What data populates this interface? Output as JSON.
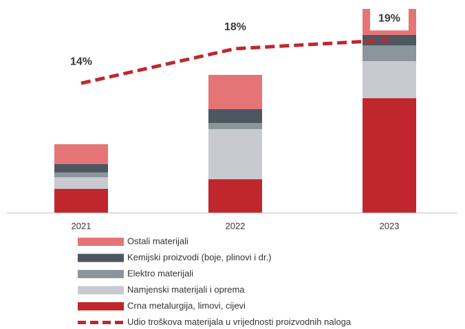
{
  "chart_data": {
    "type": "bar",
    "stacked": true,
    "categories": [
      "2021",
      "2022",
      "2023"
    ],
    "ylim": [
      0,
      297
    ],
    "y2lim": [
      -1,
      22.6
    ],
    "series": [
      {
        "name": "Crna metalurgija, limovi, cijevi",
        "color": "#c0272d",
        "values": [
          35,
          49,
          167
        ]
      },
      {
        "name": "Namjenski materijali i oprema",
        "color": "#c8cad0",
        "values": [
          17,
          73,
          54
        ]
      },
      {
        "name": "Elektro materijali",
        "color": "#8c949c",
        "values": [
          7,
          9,
          23
        ]
      },
      {
        "name": "Kemijski proizvodi (boje, plinovi i dr.)",
        "color": "#4d5761",
        "values": [
          12,
          20,
          15
        ]
      },
      {
        "name": "Ostali materijali",
        "color": "#e57476",
        "values": [
          29,
          50,
          38
        ]
      },
      {
        "name": "Udio troškova materijala u vrijednosti proizvodnih naloga",
        "color": "#c0272d",
        "type": "line",
        "axis": "y2",
        "values": [
          14,
          18,
          19
        ],
        "value_labels": [
          "14%",
          "18%",
          "19%"
        ]
      }
    ]
  }
}
